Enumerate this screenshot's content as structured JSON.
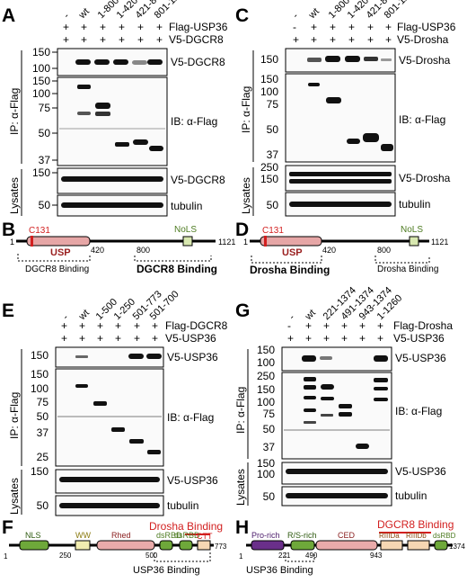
{
  "panels": {
    "A": {
      "letter": "A",
      "lanes": [
        "-",
        "wt",
        "1-800",
        "1-420",
        "421-800",
        "801-1121"
      ],
      "row1_label": "Flag-USP36",
      "row1_signs": [
        "+",
        "+",
        "+",
        "+",
        "+",
        "+"
      ],
      "row2_label": "V5-DGCR8",
      "row2_signs": [
        "+",
        "+",
        "+",
        "+",
        "+",
        "+"
      ],
      "ip_side": "IP: α-Flag",
      "lys_side": "Lysates",
      "mw_top": [
        "150",
        "100"
      ],
      "mw_mid": [
        "150",
        "100",
        "75",
        "50",
        "37"
      ],
      "mw_lys": [
        "150",
        "50"
      ],
      "label_top": "V5-DGCR8",
      "label_mid": "IB: α-Flag",
      "label_lys1": "V5-DGCR8",
      "label_lys2": "tubulin"
    },
    "C": {
      "letter": "C",
      "lanes": [
        "-",
        "wt",
        "1-800",
        "1-420",
        "421-800",
        "801-1121"
      ],
      "row1_label": "Flag-USP36",
      "row1_signs": [
        "-",
        "+",
        "+",
        "+",
        "+",
        "+"
      ],
      "row2_label": "V5-Drosha",
      "row2_signs": [
        "+",
        "+",
        "+",
        "+",
        "+",
        "+"
      ],
      "ip_side": "IP: α-Flag",
      "lys_side": "Lysates",
      "mw_top": [
        "150"
      ],
      "mw_mid": [
        "150",
        "100",
        "75",
        "50",
        "37"
      ],
      "mw_lys": [
        "250",
        "150",
        "50"
      ],
      "label_top": "V5-Drosha",
      "label_mid": "IB: α-Flag",
      "label_lys1": "V5-Drosha",
      "label_lys2": "tubulin"
    },
    "B": {
      "letter": "B",
      "start": "1",
      "end": "1121",
      "c131": "C131",
      "domain": "USP",
      "nols": "NoLS",
      "pos1": "420",
      "pos2": "800",
      "binding1": "DGCR8 Binding",
      "binding2": "DGCR8 Binding"
    },
    "D": {
      "letter": "D",
      "start": "1",
      "end": "1121",
      "c131": "C131",
      "domain": "USP",
      "nols": "NoLS",
      "pos1": "420",
      "pos2": "800",
      "binding1": "Drosha Binding",
      "binding2": "Drosha Binding"
    },
    "E": {
      "letter": "E",
      "lanes": [
        "-",
        "wt",
        "1-500",
        "1-250",
        "501-773",
        "501-700"
      ],
      "row1_label": "Flag-DGCR8",
      "row1_signs": [
        "+",
        "+",
        "+",
        "+",
        "+",
        "+"
      ],
      "row2_label": "V5-USP36",
      "row2_signs": [
        "+",
        "+",
        "+",
        "+",
        "+",
        "+"
      ],
      "ip_side": "IP: α-Flag",
      "lys_side": "Lysates",
      "mw_top": [
        "150"
      ],
      "mw_mid": [
        "150",
        "100",
        "75",
        "50",
        "37",
        "25"
      ],
      "mw_lys": [
        "150",
        "50"
      ],
      "label_top": "V5-USP36",
      "label_mid": "IB: α-Flag",
      "label_lys1": "V5-USP36",
      "label_lys2": "tubulin"
    },
    "G": {
      "letter": "G",
      "lanes": [
        "-",
        "wt",
        "221-1374",
        "491-1374",
        "943-1374",
        "1-1260"
      ],
      "row1_label": "Flag-Drosha",
      "row1_signs": [
        "-",
        "+",
        "+",
        "+",
        "+",
        "+"
      ],
      "row2_label": "V5-USP36",
      "row2_signs": [
        "+",
        "+",
        "+",
        "+",
        "+",
        "+"
      ],
      "ip_side": "IP: α-Flag",
      "lys_side": "Lysates",
      "mw_top": [
        "150",
        "100"
      ],
      "mw_mid": [
        "250",
        "150",
        "100",
        "75",
        "50",
        "37"
      ],
      "mw_lys": [
        "150",
        "100",
        "50"
      ],
      "label_top": "V5-USP36",
      "label_mid": "IB: α-Flag",
      "label_lys1": "V5-USP36",
      "label_lys2": "tubulin"
    },
    "F": {
      "letter": "F",
      "start": "1",
      "end": "773",
      "pos_a": "250",
      "pos_b": "500",
      "nls": "NLS",
      "ww": "WW",
      "rhed": "Rhed",
      "dsrbd1": "dsRBD",
      "dsrbd2": "dsRBD",
      "ctt": "CTT",
      "binding_top": "Drosha Binding",
      "binding_bottom": "USP36 Binding"
    },
    "H": {
      "letter": "H",
      "start": "1",
      "end": "1374",
      "pos_a": "221",
      "pos_b": "490",
      "pos_c": "943",
      "prorich": "Pro-rich",
      "rsrich": "R/S-rich",
      "ced": "CED",
      "rIIIda": "RIIIDa",
      "rIIIdb": "RIIIDb",
      "dsrbd": "dsRBD",
      "binding_top": "DGCR8 Binding",
      "binding_bottom": "USP36 Binding"
    }
  },
  "colors": {
    "usp_pink": "#e6a6a6",
    "nols_green": "#d8e8b0",
    "domain_green": "#6ea83a",
    "ww_yellow": "#f1ecb0",
    "rhed_pink": "#e9aaaa",
    "peach": "#f5d7b3",
    "purple": "#6a2f8a",
    "red": "#d21f1f",
    "gray_bg": "#fafafa"
  }
}
